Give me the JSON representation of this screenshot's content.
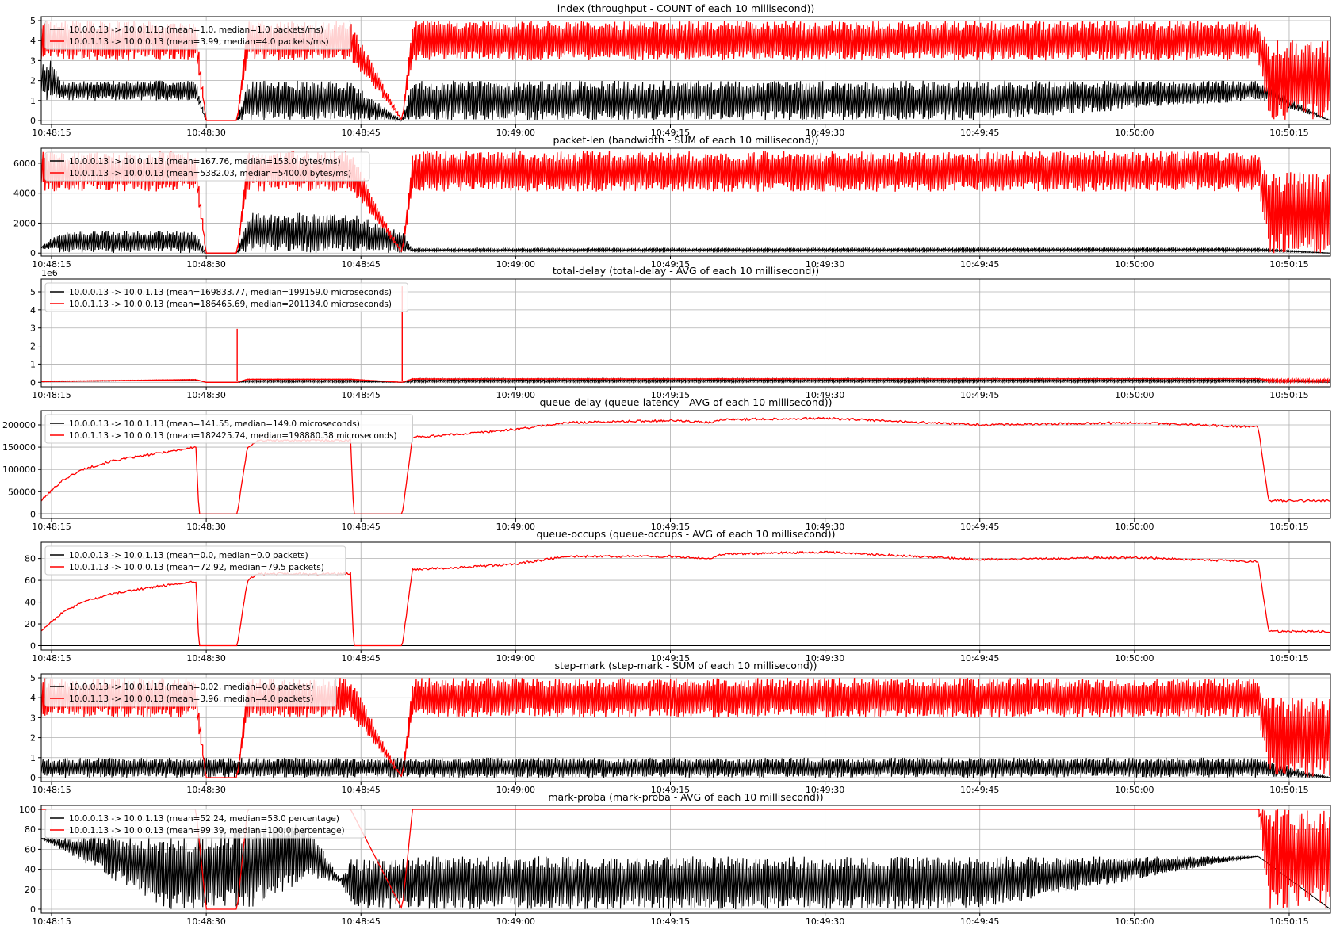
{
  "chart_data": [
    {
      "type": "line",
      "title": "index (throughput - COUNT of each 10 millisecond))",
      "ylim": [
        -0.2,
        5.2
      ],
      "yticks": [
        "0",
        "1",
        "2",
        "3",
        "4",
        "5"
      ],
      "ytick_values": [
        0,
        1,
        2,
        3,
        4,
        5
      ],
      "xlim": [
        "10:48:14",
        "10:50:19"
      ],
      "xticks": [
        "10:48:15",
        "10:48:30",
        "10:48:45",
        "10:49:00",
        "10:49:15",
        "10:49:30",
        "10:49:45",
        "10:50:00",
        "10:50:15"
      ],
      "grid": true,
      "legend": "top-left",
      "series": [
        {
          "name": "10.0.0.13 -> 10.0.1.13 (mean=1.0, median=1.0 packets/ms)",
          "color": "#000000",
          "x": [
            "10:48:14",
            "10:48:15",
            "10:48:16",
            "10:48:29",
            "10:48:30",
            "10:48:33",
            "10:48:34",
            "10:48:44",
            "10:48:49",
            "10:48:50",
            "10:49:45",
            "10:50:12",
            "10:50:19"
          ],
          "low": [
            1,
            1,
            1,
            1,
            0,
            0,
            0,
            0,
            0,
            0,
            0,
            1,
            0
          ],
          "high": [
            3,
            3,
            2,
            2,
            0,
            0,
            2,
            2,
            0,
            2,
            2,
            2,
            0
          ]
        },
        {
          "name": "10.0.1.13 -> 10.0.0.13 (mean=3.99, median=4.0 packets/ms)",
          "color": "#ff0000",
          "x": [
            "10:48:14",
            "10:48:29",
            "10:48:30",
            "10:48:33",
            "10:48:34",
            "10:48:44",
            "10:48:49",
            "10:48:50",
            "10:50:12",
            "10:50:13",
            "10:50:19"
          ],
          "low": [
            3,
            3,
            0,
            0,
            3,
            3,
            0,
            3,
            3,
            0,
            0
          ],
          "high": [
            5,
            5,
            0,
            0,
            5,
            5,
            0,
            5,
            5,
            4,
            4
          ]
        }
      ]
    },
    {
      "type": "line",
      "title": "packet-len (bandwidth - SUM of each 10 millisecond))",
      "ylim": [
        -200,
        7000
      ],
      "yticks": [
        "0",
        "2000",
        "4000",
        "6000"
      ],
      "ytick_values": [
        0,
        2000,
        4000,
        6000
      ],
      "xlim": [
        "10:48:14",
        "10:50:19"
      ],
      "xticks": [
        "10:48:15",
        "10:48:30",
        "10:48:45",
        "10:49:00",
        "10:49:15",
        "10:49:30",
        "10:49:45",
        "10:50:00",
        "10:50:15"
      ],
      "grid": true,
      "legend": "top-left",
      "series": [
        {
          "name": "10.0.0.13 -> 10.0.1.13 (mean=167.76, median=153.0 bytes/ms)",
          "color": "#000000",
          "x": [
            "10:48:14",
            "10:48:16",
            "10:48:29",
            "10:48:30",
            "10:48:33",
            "10:48:34",
            "10:48:44",
            "10:48:49",
            "10:48:50",
            "10:50:12",
            "10:50:19"
          ],
          "low": [
            300,
            0,
            0,
            0,
            0,
            0,
            0,
            0,
            100,
            100,
            0
          ],
          "high": [
            450,
            1500,
            1500,
            0,
            0,
            2700,
            2700,
            1500,
            300,
            350,
            0
          ]
        },
        {
          "name": "10.0.1.13 -> 10.0.0.13 (mean=5382.03, median=5400.0 bytes/ms)",
          "color": "#ff0000",
          "x": [
            "10:48:14",
            "10:48:29",
            "10:48:30",
            "10:48:33",
            "10:48:34",
            "10:48:44",
            "10:48:49",
            "10:48:50",
            "10:50:12",
            "10:50:13",
            "10:50:19"
          ],
          "low": [
            4100,
            4100,
            0,
            0,
            4100,
            4100,
            0,
            4100,
            4100,
            0,
            0
          ],
          "high": [
            6800,
            6800,
            0,
            0,
            6800,
            6800,
            0,
            6800,
            6800,
            5400,
            5400
          ]
        }
      ]
    },
    {
      "type": "line",
      "title": "total-delay (total-delay - AVG of each 10 millisecond))",
      "scale_label": "1e6",
      "ylim": [
        -0.25,
        5.7
      ],
      "yticks": [
        "0",
        "1",
        "2",
        "3",
        "4",
        "5"
      ],
      "ytick_values": [
        0,
        1,
        2,
        3,
        4,
        5
      ],
      "xlim": [
        "10:48:14",
        "10:50:19"
      ],
      "xticks": [
        "10:48:15",
        "10:48:30",
        "10:48:45",
        "10:49:00",
        "10:49:15",
        "10:49:30",
        "10:49:45",
        "10:50:00",
        "10:50:15"
      ],
      "grid": true,
      "legend": "top-left",
      "series": [
        {
          "name": "10.0.0.13 -> 10.0.1.13 (mean=169833.77, median=199159.0 microseconds)",
          "color": "#000000",
          "x": [
            "10:48:14",
            "10:48:29",
            "10:48:30",
            "10:48:33",
            "10:48:34",
            "10:48:44",
            "10:48:49",
            "10:48:50",
            "10:50:12",
            "10:50:19"
          ],
          "low": [
            0.03,
            0.12,
            0,
            0,
            0,
            0,
            0,
            0,
            0,
            0
          ],
          "high": [
            0.05,
            0.15,
            0,
            0,
            0.15,
            0.15,
            0,
            0.2,
            0.2,
            0
          ]
        },
        {
          "name": "10.0.1.13 -> 10.0.0.13 (mean=186465.69, median=201134.0 microseconds)",
          "color": "#ff0000",
          "x": [
            "10:48:14",
            "10:48:29",
            "10:48:30",
            "10:48:33",
            "10:48:34",
            "10:48:44",
            "10:48:49",
            "10:48:50",
            "10:50:12",
            "10:50:13",
            "10:50:19"
          ],
          "low": [
            0.03,
            0.14,
            0,
            0,
            0.16,
            0.16,
            0,
            0.17,
            0.19,
            0,
            0
          ],
          "high": [
            0.06,
            0.16,
            0,
            0,
            0.18,
            0.18,
            0,
            0.2,
            0.21,
            0.18,
            0.18
          ]
        }
      ],
      "spikes": [
        {
          "x": "10:48:33",
          "y": 2.95
        },
        {
          "x": "10:48:49",
          "y": 5.3
        }
      ]
    },
    {
      "type": "line",
      "title": "queue-delay (queue-latency - AVG of each 10 millisecond))",
      "ylim": [
        -10000,
        232000
      ],
      "yticks": [
        "0",
        "50000",
        "100000",
        "150000",
        "200000"
      ],
      "ytick_values": [
        0,
        50000,
        100000,
        150000,
        200000
      ],
      "xlim": [
        "10:48:14",
        "10:50:19"
      ],
      "xticks": [
        "10:48:15",
        "10:48:30",
        "10:48:45",
        "10:49:00",
        "10:49:15",
        "10:49:30",
        "10:49:45",
        "10:50:00",
        "10:50:15"
      ],
      "grid": true,
      "legend": "top-left",
      "series": [
        {
          "name": "10.0.0.13 -> 10.0.1.13 (mean=141.55, median=149.0 microseconds)",
          "color": "#000000",
          "x": [
            "10:48:14",
            "10:50:19"
          ],
          "y": [
            200,
            200
          ]
        },
        {
          "name": "10.0.1.13 -> 10.0.0.13 (mean=182425.74, median=198880.38 microseconds)",
          "color": "#ff0000",
          "x": [
            "10:48:14",
            "10:48:16",
            "10:48:18",
            "10:48:21",
            "10:48:25",
            "10:48:29",
            "10:48:29.3",
            "10:48:33",
            "10:48:34",
            "10:48:35",
            "10:48:44",
            "10:48:44.3",
            "10:48:49",
            "10:48:50",
            "10:48:55",
            "10:49:00",
            "10:49:05",
            "10:49:15",
            "10:49:19",
            "10:49:20",
            "10:49:30",
            "10:49:45",
            "10:50:00",
            "10:50:12",
            "10:50:13",
            "10:50:19"
          ],
          "y": [
            30000,
            75000,
            100000,
            120000,
            135000,
            150000,
            0,
            0,
            150000,
            165000,
            165000,
            0,
            0,
            172000,
            180000,
            190000,
            205000,
            210000,
            205000,
            212000,
            215000,
            200000,
            205000,
            195000,
            30000,
            30000
          ]
        }
      ]
    },
    {
      "type": "line",
      "title": "queue-occups (queue-occups - AVG of each 10 millisecond))",
      "ylim": [
        -4,
        95
      ],
      "yticks": [
        "0",
        "20",
        "40",
        "60",
        "80"
      ],
      "ytick_values": [
        0,
        20,
        40,
        60,
        80
      ],
      "xlim": [
        "10:48:14",
        "10:50:19"
      ],
      "xticks": [
        "10:48:15",
        "10:48:30",
        "10:48:45",
        "10:49:00",
        "10:49:15",
        "10:49:30",
        "10:49:45",
        "10:50:00",
        "10:50:15"
      ],
      "grid": true,
      "legend": "top-left",
      "series": [
        {
          "name": "10.0.0.13 -> 10.0.1.13 (mean=0.0, median=0.0 packets)",
          "color": "#000000",
          "x": [
            "10:48:14",
            "10:50:19"
          ],
          "y": [
            0,
            0
          ]
        },
        {
          "name": "10.0.1.13 -> 10.0.0.13 (mean=72.92, median=79.5 packets)",
          "color": "#ff0000",
          "x": [
            "10:48:14",
            "10:48:16",
            "10:48:18",
            "10:48:21",
            "10:48:25",
            "10:48:29",
            "10:48:29.3",
            "10:48:33",
            "10:48:34",
            "10:48:35",
            "10:48:44",
            "10:48:44.3",
            "10:48:49",
            "10:48:50",
            "10:48:55",
            "10:49:00",
            "10:49:05",
            "10:49:15",
            "10:49:19",
            "10:49:20",
            "10:49:30",
            "10:49:45",
            "10:50:00",
            "10:50:12",
            "10:50:13",
            "10:50:19"
          ],
          "y": [
            14,
            30,
            40,
            48,
            54,
            59,
            0,
            0,
            60,
            66,
            66,
            0,
            0,
            70,
            72,
            75,
            82,
            82,
            80,
            84,
            86,
            79,
            81,
            77,
            13,
            13
          ]
        }
      ]
    },
    {
      "type": "line",
      "title": "step-mark (step-mark - SUM of each 10 millisecond))",
      "ylim": [
        -0.2,
        5.2
      ],
      "yticks": [
        "0",
        "1",
        "2",
        "3",
        "4",
        "5"
      ],
      "ytick_values": [
        0,
        1,
        2,
        3,
        4,
        5
      ],
      "xlim": [
        "10:48:14",
        "10:50:19"
      ],
      "xticks": [
        "10:48:15",
        "10:48:30",
        "10:48:45",
        "10:49:00",
        "10:49:15",
        "10:49:30",
        "10:49:45",
        "10:50:00",
        "10:50:15"
      ],
      "grid": true,
      "legend": "top-left",
      "series": [
        {
          "name": "10.0.0.13 -> 10.0.1.13 (mean=0.02, median=0.0 packets)",
          "color": "#000000",
          "x": [
            "10:48:14",
            "10:48:25",
            "10:48:29",
            "10:48:34",
            "10:48:44",
            "10:48:49",
            "10:48:50",
            "10:50:12",
            "10:50:19"
          ],
          "low": [
            0,
            0,
            0,
            0,
            0,
            0,
            0,
            0,
            0
          ],
          "high": [
            1,
            1,
            1,
            1,
            1,
            1,
            1,
            1,
            0
          ]
        },
        {
          "name": "10.0.1.13 -> 10.0.0.13 (mean=3.96, median=4.0 packets)",
          "color": "#ff0000",
          "x": [
            "10:48:14",
            "10:48:29",
            "10:48:30",
            "10:48:33",
            "10:48:34",
            "10:48:44",
            "10:48:49",
            "10:48:50",
            "10:50:12",
            "10:50:13",
            "10:50:19"
          ],
          "low": [
            3,
            3,
            0,
            0,
            3,
            3,
            0,
            3,
            3,
            0,
            0
          ],
          "high": [
            5,
            5,
            0,
            0,
            5,
            5,
            0,
            5,
            5,
            4,
            4
          ]
        }
      ]
    },
    {
      "type": "line",
      "title": "mark-proba (mark-proba - AVG of each 10 millisecond))",
      "ylim": [
        -4,
        104
      ],
      "yticks": [
        "0",
        "20",
        "40",
        "60",
        "80",
        "100"
      ],
      "ytick_values": [
        0,
        20,
        40,
        60,
        80,
        100
      ],
      "xlim": [
        "10:48:14",
        "10:50:19"
      ],
      "xticks": [
        "10:48:15",
        "10:48:30",
        "10:48:45",
        "10:49:00",
        "10:49:15",
        "10:49:30",
        "10:49:45",
        "10:50:00",
        "10:50:15"
      ],
      "grid": true,
      "legend": "top-left",
      "series": [
        {
          "name": "10.0.0.13 -> 10.0.1.13 (mean=52.24, median=53.0 percentage)",
          "color": "#000000",
          "x": [
            "10:48:14",
            "10:48:26",
            "10:48:29",
            "10:48:34",
            "10:48:40",
            "10:48:43",
            "10:48:44",
            "10:48:48",
            "10:48:50",
            "10:49:00",
            "10:49:45",
            "10:50:12",
            "10:50:19"
          ],
          "low": [
            71,
            0,
            0,
            0,
            28,
            28,
            0,
            0,
            0,
            0,
            0,
            53,
            0
          ],
          "high": [
            71,
            75,
            75,
            85,
            85,
            30,
            50,
            50,
            53,
            53,
            53,
            53,
            0
          ]
        },
        {
          "name": "10.0.1.13 -> 10.0.0.13 (mean=99.39, median=100.0 percentage)",
          "color": "#ff0000",
          "x": [
            "10:48:14",
            "10:48:29",
            "10:48:30",
            "10:48:33",
            "10:48:34",
            "10:48:44",
            "10:48:49",
            "10:48:50",
            "10:50:12",
            "10:50:13",
            "10:50:19"
          ],
          "low": [
            100,
            100,
            0,
            0,
            100,
            100,
            0,
            100,
            100,
            0,
            0
          ],
          "high": [
            100,
            100,
            0,
            0,
            100,
            100,
            0,
            100,
            100,
            100,
            100
          ]
        }
      ]
    }
  ]
}
